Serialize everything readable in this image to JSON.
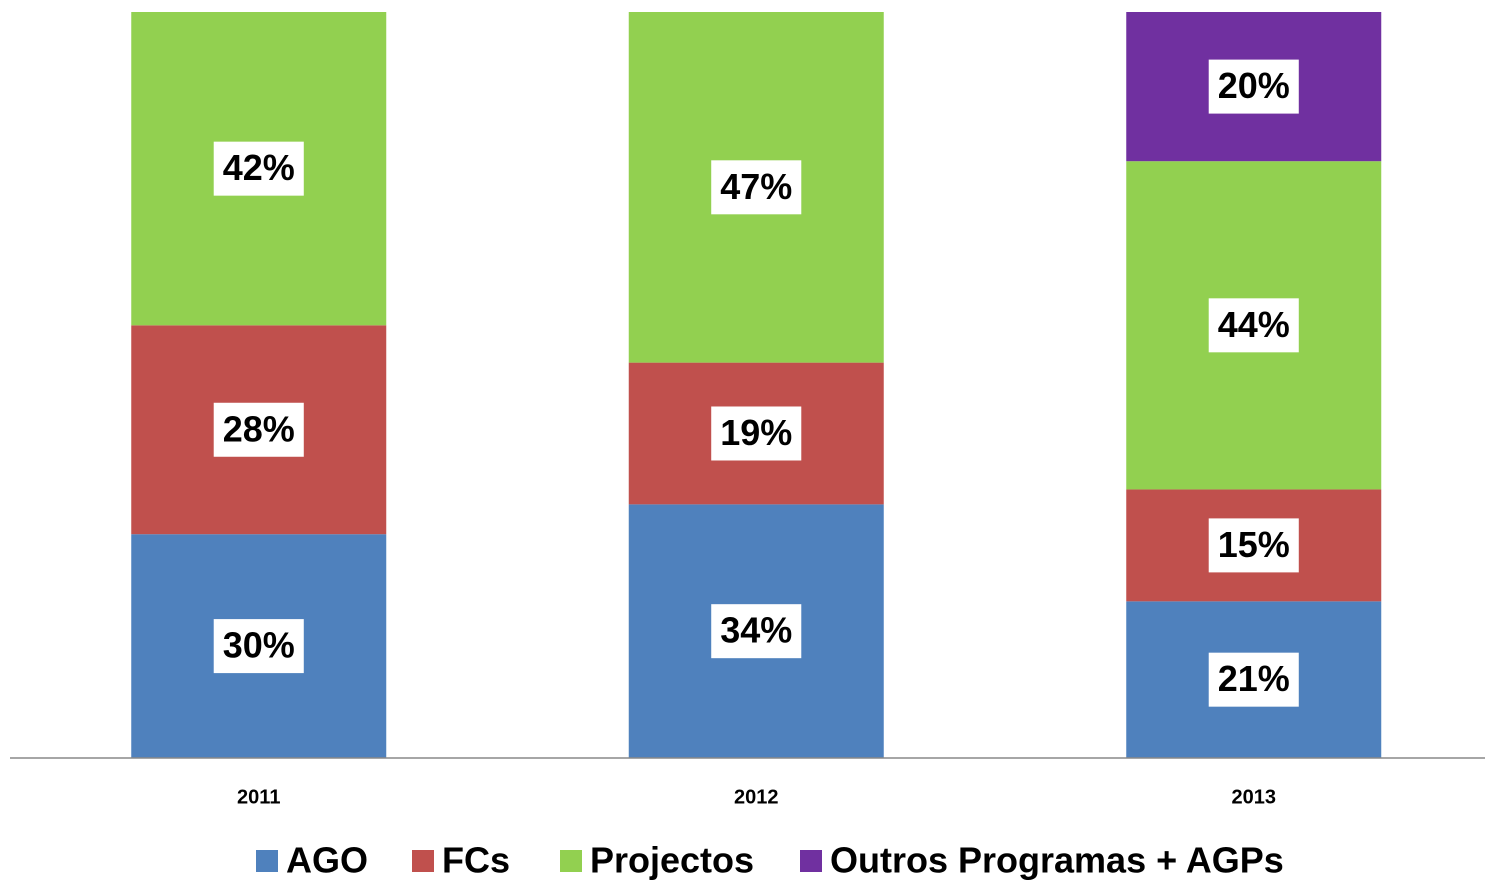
{
  "chart_data": {
    "type": "stacked_bar",
    "categories": [
      "2011",
      "2012",
      "2013"
    ],
    "series": [
      {
        "name": "AGO",
        "color": "#4f81bd",
        "values": [
          30,
          34,
          21
        ],
        "value_labels": [
          "30%",
          "34%",
          "21%"
        ]
      },
      {
        "name": "FCs",
        "color": "#c0504d",
        "values": [
          28,
          19,
          15
        ],
        "value_labels": [
          "28%",
          "19%",
          "15%"
        ]
      },
      {
        "name": "Projectos",
        "color": "#92d050",
        "values": [
          42,
          47,
          44
        ],
        "value_labels": [
          "42%",
          "47%",
          "44%"
        ]
      },
      {
        "name": "Outros Programas + AGPs",
        "color": "#7030a0",
        "values": [
          null,
          null,
          20
        ],
        "value_labels": [
          null,
          null,
          "20%"
        ]
      }
    ],
    "ylim": [
      0,
      100
    ],
    "legend": "bottom"
  }
}
